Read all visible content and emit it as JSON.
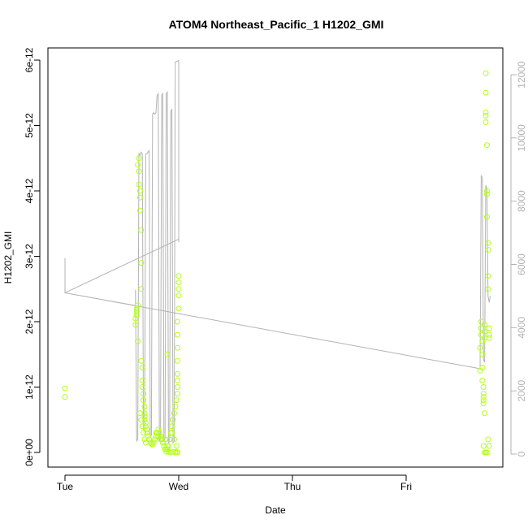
{
  "chart_data": {
    "type": "scatter",
    "title": "ATOM4 Northeast_Pacific_1 H1202_GMI",
    "xlabel": "Date",
    "ylabel": "H1202_GMI",
    "x_ticks": [
      "Tue",
      "Wed",
      "Thu",
      "Fri"
    ],
    "xlim": [
      0,
      3.95
    ],
    "ylim": [
      -1.6e-13,
      6.2e-12
    ],
    "y_ticks": [
      0,
      1e-12,
      2e-12,
      3e-12,
      4e-12,
      5e-12,
      6e-12
    ],
    "y_tick_labels": [
      "0e+00",
      "1e-12",
      "2e-12",
      "3e-12",
      "4e-12",
      "5e-12",
      "6e-12"
    ],
    "y2lim": [
      -400,
      12800
    ],
    "y2_ticks": [
      0,
      2000,
      4000,
      6000,
      8000,
      10000,
      12000
    ],
    "y2_tick_labels": [
      "0",
      "2000",
      "4000",
      "6000",
      "8000",
      "10000",
      "12000"
    ],
    "grid": false,
    "legend": "none",
    "colors": {
      "points": "#b3ff1a",
      "line": "#b3b3b3",
      "frame": "#000000"
    },
    "series": [
      {
        "type": "scatter",
        "axis": "left",
        "x": [
          0.0,
          0.0,
          0.62,
          0.62,
          0.63,
          0.63,
          0.63,
          0.64,
          0.64,
          0.64,
          0.65,
          0.65,
          0.65,
          0.66,
          0.66,
          0.66,
          0.67,
          0.67,
          0.67,
          0.67,
          0.68,
          0.68,
          0.68,
          0.69,
          0.69,
          0.7,
          0.7,
          0.7,
          0.7,
          0.71,
          0.71,
          0.72,
          0.72,
          0.73,
          0.74,
          0.75,
          0.76,
          0.77,
          0.78,
          0.79,
          0.8,
          0.81,
          0.82,
          0.83,
          0.84,
          0.85,
          0.86,
          0.87,
          0.88,
          0.89,
          0.9,
          0.91,
          0.92,
          0.93,
          0.94,
          0.95,
          0.96,
          0.97,
          0.98,
          0.99,
          0.99,
          0.99,
          0.99,
          0.99,
          0.99,
          0.99,
          0.99,
          1.0,
          1.0,
          1.0,
          1.0,
          1.0,
          0.9,
          0.92,
          0.94,
          0.96,
          0.98,
          0.89,
          0.91,
          0.93,
          0.95,
          0.97,
          0.98,
          0.99,
          0.66,
          0.67,
          0.68,
          0.69,
          0.7,
          0.71,
          0.8,
          0.82,
          0.84,
          0.86,
          0.88,
          0.9,
          3.65,
          3.65,
          3.66,
          3.66,
          3.66,
          3.67,
          3.67,
          3.67,
          3.67,
          3.68,
          3.68,
          3.68,
          3.68,
          3.68,
          3.69,
          3.69,
          3.69,
          3.69,
          3.7,
          3.7,
          3.7,
          3.7,
          3.7,
          3.71,
          3.71,
          3.71,
          3.71,
          3.72,
          3.72,
          3.72,
          3.72,
          3.73,
          3.73,
          3.73,
          3.68,
          3.69,
          3.7,
          3.71,
          3.72,
          3.73
        ],
        "y": [
          9.8e-13,
          8.5e-13,
          1.95e-12,
          2.05e-12,
          2.1e-12,
          2.15e-12,
          2.2e-12,
          2.25e-12,
          1.7e-12,
          4.4e-12,
          4.5e-12,
          4.3e-12,
          4.1e-12,
          4e-12,
          3.9e-12,
          3.7e-12,
          3.4e-12,
          2.9e-12,
          2.5e-12,
          1.4e-12,
          1.3e-12,
          1.1e-12,
          1e-12,
          9e-13,
          8e-13,
          7e-13,
          6e-13,
          5.5e-13,
          5e-13,
          4.5e-13,
          4e-13,
          3.5e-13,
          3e-13,
          2.5e-13,
          2e-13,
          1.5e-13,
          1.3e-13,
          1.2e-13,
          1.5e-13,
          2e-13,
          2.5e-13,
          3e-13,
          3.5e-13,
          3e-13,
          2.5e-13,
          2e-13,
          1.5e-13,
          1e-13,
          5e-14,
          1e-14,
          5e-14,
          1e-13,
          2e-13,
          3e-13,
          4e-13,
          5e-13,
          6e-13,
          7e-13,
          8e-13,
          9e-13,
          1e-12,
          1.1e-12,
          1.2e-12,
          1.4e-12,
          1.6e-12,
          1.8e-12,
          2e-12,
          2.2e-12,
          2.4e-12,
          2.6e-12,
          2.7e-12,
          2.5e-12,
          1e-13,
          2e-13,
          3e-13,
          2e-13,
          1e-13,
          5e-14,
          1e-14,
          0,
          1e-14,
          0,
          1e-14,
          0,
          6e-13,
          5e-13,
          4e-13,
          3e-13,
          2e-13,
          1.5e-13,
          3e-13,
          2.5e-13,
          2e-13,
          1.5e-13,
          2e-13,
          1.5e-12,
          1.25e-12,
          1.6e-12,
          1.8e-12,
          1.9e-12,
          2e-12,
          1.7e-12,
          1.5e-12,
          1.3e-12,
          1.1e-12,
          1e-12,
          9e-13,
          8.5e-13,
          8e-13,
          7.5e-13,
          1.95e-12,
          1.85e-12,
          1.75e-12,
          6e-13,
          5.8e-12,
          5.5e-12,
          5.2e-12,
          5.15e-12,
          5.05e-12,
          4.7e-12,
          4e-12,
          3.95e-12,
          3.6e-12,
          3.2e-12,
          3.1e-12,
          2.7e-12,
          2.5e-12,
          1.9e-12,
          1.8e-12,
          1.75e-12,
          1e-13,
          0,
          0,
          0,
          2e-13,
          1e-13
        ]
      },
      {
        "type": "line",
        "axis": "right",
        "x": [
          0.0,
          0.0,
          1.0,
          1.0,
          1.0,
          0.97,
          0.96,
          0.95,
          0.94,
          0.93,
          0.92,
          0.91,
          0.9,
          0.89,
          0.88,
          0.87,
          0.86,
          0.85,
          0.84,
          0.83,
          0.82,
          0.81,
          0.8,
          0.79,
          0.78,
          0.77,
          0.76,
          0.75,
          0.74,
          0.73,
          0.72,
          0.71,
          0.7,
          0.69,
          0.68,
          0.67,
          0.66,
          0.65,
          0.64,
          0.63,
          0.62,
          0.62,
          0.0,
          3.65,
          3.66,
          3.67,
          3.68,
          3.69,
          3.7,
          3.71,
          3.72,
          3.73,
          3.74
        ],
        "y": [
          6200,
          5100,
          6800,
          6700,
          12450,
          12400,
          400,
          350,
          10900,
          10850,
          400,
          350,
          11450,
          11400,
          500,
          400,
          11400,
          11350,
          500,
          400,
          11400,
          11350,
          10800,
          10750,
          10800,
          10750,
          600,
          550,
          9600,
          9550,
          9500,
          9500,
          700,
          800,
          9500,
          9550,
          9450,
          9500,
          500,
          400,
          5200,
          4700,
          5100,
          2700,
          8800,
          8750,
          3000,
          2900,
          8500,
          8400,
          5000,
          4800,
          5000
        ]
      }
    ]
  }
}
